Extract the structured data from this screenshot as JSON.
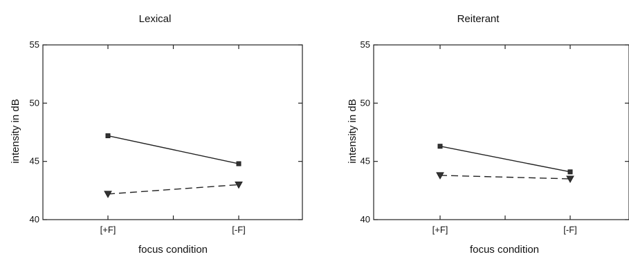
{
  "chart_data": [
    {
      "type": "line",
      "title": "Lexical",
      "xlabel": "focus condition",
      "ylabel": "intensity in dB",
      "categories": [
        "[+F]",
        "[-F]"
      ],
      "ylim": [
        40,
        55
      ],
      "yticks": [
        40,
        45,
        50,
        55
      ],
      "grid": false,
      "series": [
        {
          "values": [
            47.2,
            44.8
          ],
          "line_style": "solid",
          "marker": "square"
        },
        {
          "values": [
            42.2,
            43.0
          ],
          "line_style": "dashed",
          "marker": "triangle-down"
        }
      ]
    },
    {
      "type": "line",
      "title": "Reiterant",
      "xlabel": "focus condition",
      "ylabel": "intensity in dB",
      "categories": [
        "[+F]",
        "[-F]"
      ],
      "ylim": [
        40,
        55
      ],
      "yticks": [
        40,
        45,
        50,
        55
      ],
      "grid": false,
      "series": [
        {
          "values": [
            46.3,
            44.1
          ],
          "line_style": "solid",
          "marker": "square"
        },
        {
          "values": [
            43.8,
            43.5
          ],
          "line_style": "dashed",
          "marker": "triangle-down"
        }
      ]
    }
  ]
}
